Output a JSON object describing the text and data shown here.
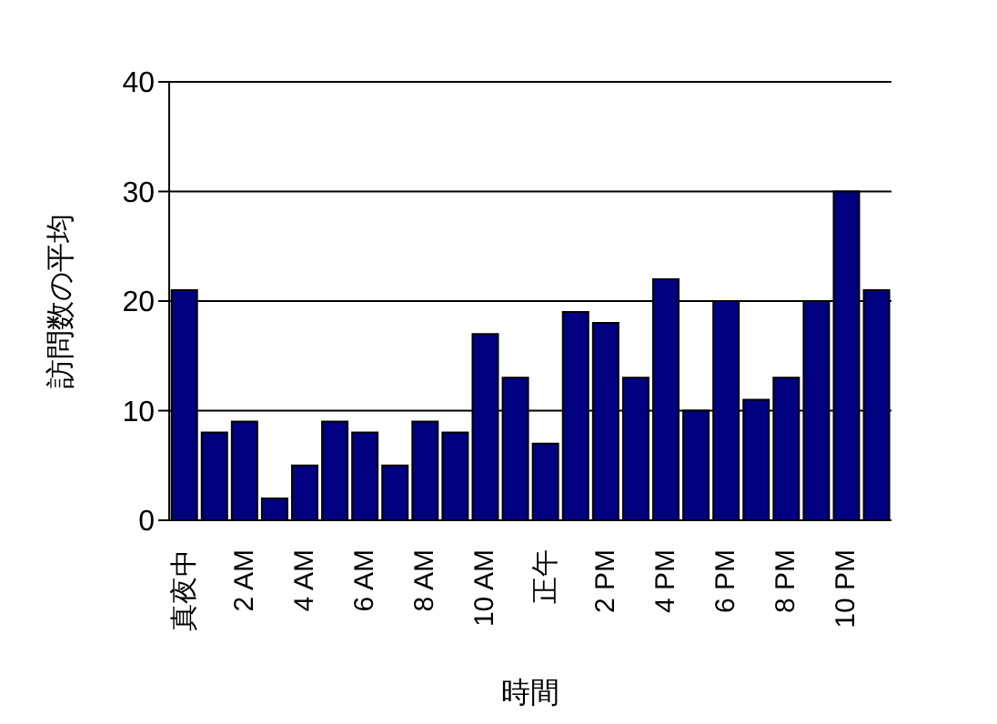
{
  "chart_data": {
    "type": "bar",
    "xlabel": "時間",
    "ylabel": "訪問数の平均",
    "categories": [
      "真夜中",
      null,
      "2 AM",
      null,
      "4 AM",
      null,
      "6 AM",
      null,
      "8 AM",
      null,
      "10 AM",
      null,
      "正午",
      null,
      "2 PM",
      null,
      "4 PM",
      null,
      "6 PM",
      null,
      "8 PM",
      null,
      "10 PM",
      null
    ],
    "values": [
      21,
      8,
      9,
      2,
      5,
      9,
      8,
      5,
      9,
      8,
      17,
      13,
      7,
      19,
      18,
      13,
      22,
      10,
      20,
      11,
      13,
      20,
      30,
      21
    ],
    "color": "#000080",
    "ylim": [
      0,
      40
    ],
    "yticks": [
      0,
      10,
      20,
      30,
      40
    ],
    "grid": "y"
  }
}
